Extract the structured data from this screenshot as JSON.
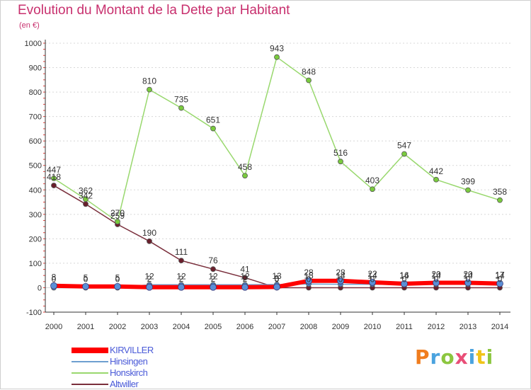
{
  "title": "Evolution du Montant de la Dette par Habitant",
  "subtitle": "(en €)",
  "logo": {
    "text": "Proxiti",
    "colors": [
      "#f07d1e",
      "#4aa3df",
      "#8cc63f",
      "#e94e77",
      "#4aa3df",
      "#f0c419",
      "#8cc63f"
    ]
  },
  "chart_data": {
    "type": "line",
    "x": [
      "2000",
      "2001",
      "2002",
      "2003",
      "2004",
      "2005",
      "2006",
      "2007",
      "2008",
      "2009",
      "2010",
      "2011",
      "2012",
      "2013",
      "2014"
    ],
    "ylim": [
      -100,
      1000
    ],
    "yticks": [
      "1000",
      "900",
      "800",
      "700",
      "600",
      "500",
      "400",
      "300",
      "200",
      "100",
      "0",
      "-100"
    ],
    "ytick_values": [
      1000,
      900,
      800,
      700,
      600,
      500,
      400,
      300,
      200,
      100,
      0,
      -100
    ],
    "grid": "horizontal",
    "legend_position": "bottom-left",
    "series": [
      {
        "name": "KIRVILLER",
        "color": "#ff0000",
        "marker": "#5b8fd6",
        "values": [
          8,
          5,
          5,
          2,
          2,
          2,
          2,
          3,
          28,
          28,
          22,
          16,
          20,
          20,
          17
        ],
        "labels": [
          "8",
          "5",
          "5",
          "2",
          "2",
          "2",
          "2",
          "3",
          "28",
          "28",
          "22",
          "16",
          "20",
          "20",
          "17"
        ]
      },
      {
        "name": "Hinsingen",
        "color": "#6e9fd0",
        "marker": "#4f7fc0",
        "values": [
          0,
          0,
          0,
          12,
          12,
          12,
          12,
          13,
          15,
          14,
          14,
          14,
          14,
          14,
          14
        ],
        "labels": [
          "0",
          "0",
          "0",
          "12",
          "12",
          "12",
          "12",
          "13",
          "15",
          "14",
          "14",
          "14",
          "14",
          "14",
          "14"
        ]
      },
      {
        "name": "Honskirch",
        "color": "#99d86e",
        "marker": "#7acb3e",
        "values": [
          447,
          362,
          270,
          810,
          735,
          651,
          458,
          943,
          848,
          516,
          403,
          547,
          442,
          399,
          358
        ],
        "labels": [
          "447",
          "362",
          "270",
          "810",
          "735",
          "651",
          "458",
          "943",
          "848",
          "516",
          "403",
          "547",
          "442",
          "399",
          "358"
        ]
      },
      {
        "name": "Altwiller",
        "color": "#7a2f3c",
        "marker": "#6a1f2c",
        "values": [
          418,
          342,
          259,
          190,
          111,
          76,
          41,
          0,
          0,
          0,
          0,
          0,
          0,
          0,
          0
        ],
        "labels": [
          "418",
          "342",
          "259",
          "190",
          "111",
          "76",
          "41",
          "0",
          "0",
          "0",
          "0",
          "0",
          "0",
          "0",
          "0"
        ]
      }
    ]
  }
}
